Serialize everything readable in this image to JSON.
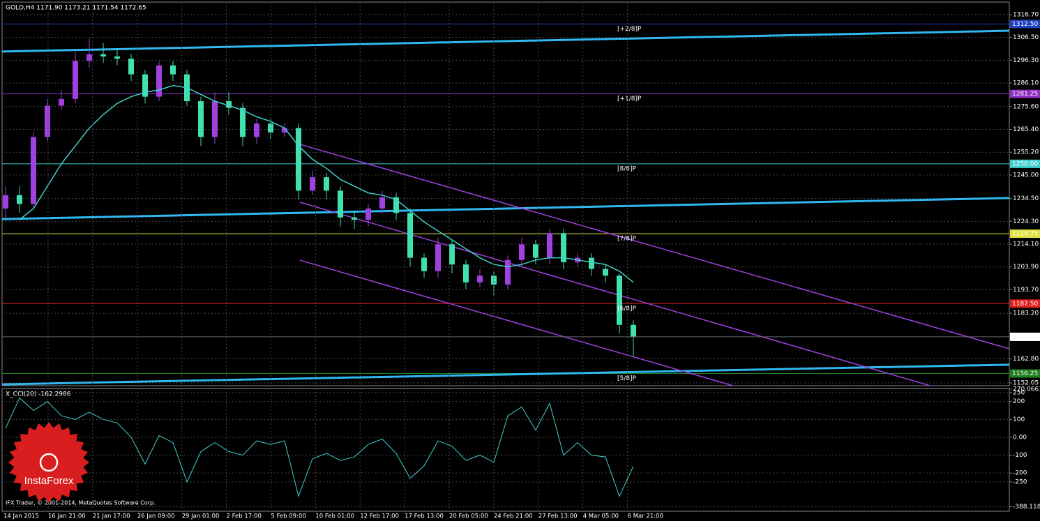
{
  "chart_data": [
    {
      "type": "candlestick",
      "title": "GOLD,H4  1171.90 1173.21 1171.54 1172.65",
      "open": [
        1230,
        1236,
        1232,
        1262,
        1276,
        1279,
        1296,
        1299,
        1298,
        1297,
        1290,
        1280,
        1294,
        1290,
        1278,
        1262,
        1278,
        1275,
        1262,
        1268,
        1264,
        1266,
        1238,
        1244,
        1238,
        1226,
        1225,
        1230,
        1235,
        1228,
        1208,
        1202,
        1214,
        1205,
        1197,
        1200,
        1196,
        1207,
        1214,
        1208,
        1219,
        1206,
        1208,
        1203,
        1200,
        1178
      ],
      "high": [
        1240,
        1240,
        1264,
        1279,
        1283,
        1300,
        1306,
        1304,
        1301,
        1299,
        1292,
        1296,
        1296,
        1292,
        1280,
        1282,
        1282,
        1277,
        1270,
        1270,
        1268,
        1268,
        1247,
        1246,
        1240,
        1229,
        1232,
        1238,
        1237,
        1230,
        1210,
        1217,
        1216,
        1207,
        1203,
        1202,
        1209,
        1217,
        1216,
        1221,
        1221,
        1210,
        1210,
        1205,
        1201,
        1180
      ],
      "low": [
        1226,
        1228,
        1230,
        1260,
        1274,
        1277,
        1293,
        1295,
        1294,
        1287,
        1277,
        1278,
        1287,
        1276,
        1258,
        1259,
        1272,
        1258,
        1259,
        1261,
        1262,
        1234,
        1236,
        1234,
        1222,
        1221,
        1222,
        1228,
        1225,
        1204,
        1199,
        1199,
        1201,
        1194,
        1195,
        1191,
        1194,
        1204,
        1205,
        1205,
        1203,
        1204,
        1200,
        1197,
        1174,
        1164
      ],
      "close": [
        1236,
        1232,
        1262,
        1276,
        1279,
        1296,
        1299,
        1298,
        1297,
        1290,
        1280,
        1294,
        1290,
        1278,
        1262,
        1278,
        1275,
        1262,
        1268,
        1264,
        1266,
        1238,
        1244,
        1238,
        1226,
        1225,
        1230,
        1235,
        1228,
        1208,
        1202,
        1214,
        1205,
        1197,
        1200,
        1196,
        1207,
        1214,
        1208,
        1219,
        1206,
        1208,
        1203,
        1200,
        1178,
        1172.65
      ],
      "colors": {
        "up": "#a040e0",
        "down": "#40e0b0"
      },
      "ma": {
        "color": "#40d0c8",
        "values": [
          null,
          1225,
          1230,
          1240,
          1250,
          1258,
          1266,
          1272,
          1277,
          1280,
          1282,
          1283,
          1285,
          1284,
          1281,
          1278,
          1276,
          1274,
          1271,
          1269,
          1266,
          1258,
          1252,
          1248,
          1243,
          1240,
          1237,
          1236,
          1234,
          1229,
          1224,
          1220,
          1216,
          1212,
          1208,
          1205,
          1204,
          1205,
          1207,
          1208,
          1208,
          1207,
          1206,
          1205,
          1202,
          1197
        ]
      },
      "ylim": [
        1150.8,
        1322.3
      ],
      "yticks": [
        {
          "value": 1316.7,
          "label": "1316.70"
        },
        {
          "value": 1306.5,
          "label": "1306.50"
        },
        {
          "value": 1296.3,
          "label": "1296.30"
        },
        {
          "value": 1286.1,
          "label": "1286.10"
        },
        {
          "value": 1275.6,
          "label": "1275.60"
        },
        {
          "value": 1265.4,
          "label": "1265.40"
        },
        {
          "value": 1255.2,
          "label": "1255.20"
        },
        {
          "value": 1245,
          "label": "1245.00"
        },
        {
          "value": 1234.5,
          "label": "1234.50"
        },
        {
          "value": 1224.3,
          "label": "1224.30"
        },
        {
          "value": 1214.1,
          "label": "1214.10"
        },
        {
          "value": 1203.9,
          "label": "1203.90"
        },
        {
          "value": 1193.7,
          "label": "1193.70"
        },
        {
          "value": 1183.2,
          "label": "1183.20"
        },
        {
          "value": 1162.8,
          "label": "1162.80"
        },
        1152.05
      ],
      "levels": [
        {
          "value": 1312.5,
          "label": "1312.50",
          "tag": "[+2/8]P",
          "color": "#2040c0"
        },
        {
          "value": 1281.25,
          "label": "1281.25",
          "tag": "[+1/8]P",
          "color": "#9030c0"
        },
        {
          "value": 1250,
          "label": "1250.00",
          "tag": "[8/8]P",
          "color": "#40d0d0"
        },
        {
          "value": 1218.75,
          "label": "1218.75",
          "tag": "[7/8]P",
          "color": "#e0e040"
        },
        {
          "value": 1187.5,
          "label": "1187.50",
          "tag": "[6/8]P",
          "color": "#e02020"
        },
        {
          "value": 1156.25,
          "label": "1156.25",
          "tag": "[5/8]P",
          "color": "#208020"
        }
      ],
      "trendlines": [
        {
          "color": "#30b8f0",
          "width": 3,
          "x": [
            -0.25,
            71.95
          ],
          "y": [
            1300.2,
            1309.5
          ]
        },
        {
          "color": "#30b8f0",
          "width": 3,
          "x": [
            -0.25,
            71.95
          ],
          "y": [
            1225.3,
            1234.7
          ]
        },
        {
          "color": "#30b8f0",
          "width": 3,
          "x": [
            -0.25,
            71.95
          ],
          "y": [
            1151.4,
            1160.2
          ]
        },
        {
          "color": "#a040e0",
          "width": 1.5,
          "x": [
            21.1,
            71.95
          ],
          "y": [
            1258.7,
            1167.3
          ]
        },
        {
          "color": "#a040e0",
          "width": 1.5,
          "x": [
            21.1,
            71.95
          ],
          "y": [
            1232.8,
            1140.5
          ]
        },
        {
          "color": "#a040e0",
          "width": 1.5,
          "x": [
            21.1,
            71.95
          ],
          "y": [
            1206.9,
            1115.0
          ]
        }
      ],
      "time_labels": [
        "14 Jan 2015",
        "16 Jan 21:00",
        "21 Jan 17:00",
        "26 Jan 09:00",
        "29 Jan 01:00",
        "2 Feb 17:00",
        "5 Feb 09:00",
        "10 Feb 01:00",
        "12 Feb 17:00",
        "17 Feb 13:00",
        "20 Feb 05:00",
        "24 Feb 21:00",
        "27 Feb 13:00",
        "4 Mar 05:00",
        "6 Mar 21:00"
      ],
      "grid": true
    },
    {
      "type": "line",
      "title": "X_CCI(20) -162.2986",
      "color": "#40d0d0",
      "values": [
        50,
        220,
        150,
        200,
        120,
        100,
        140,
        100,
        80,
        0,
        -150,
        10,
        -30,
        -250,
        -80,
        -30,
        -80,
        -100,
        -20,
        -40,
        -20,
        -330,
        -120,
        -90,
        -130,
        -110,
        -40,
        -10,
        -90,
        -230,
        -160,
        -20,
        -50,
        -130,
        -100,
        -140,
        120,
        170,
        40,
        190,
        -100,
        -30,
        -100,
        -110,
        -330,
        -162.3
      ],
      "ylim": [
        -414,
        273
      ],
      "yticks": [
        270.0661,
        250,
        200,
        100,
        {
          "value": 0,
          "label": "0.00"
        },
        -100,
        -200,
        -250,
        -388.1186
      ],
      "grid": true
    }
  ],
  "watermark": "InstaForex",
  "copyright": "IFX Trader, © 2001-2014, MetaQuotes Software Corp."
}
